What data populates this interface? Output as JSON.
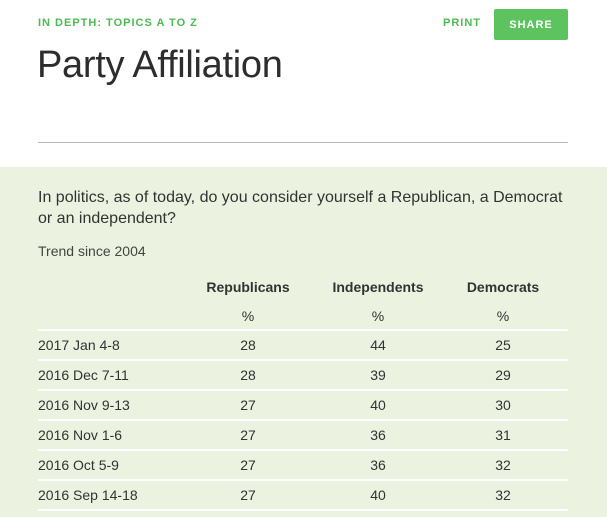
{
  "header": {
    "kicker": "IN DEPTH: TOPICS A TO Z",
    "print_label": "PRINT",
    "share_label": "SHARE",
    "title": "Party Affiliation"
  },
  "content": {
    "question": "In politics, as of today, do you consider yourself a Republican, a Democrat or an independent?",
    "trend": "Trend since 2004"
  },
  "table": {
    "columns": [
      "",
      "Republicans",
      "Independents",
      "Democrats"
    ],
    "units": [
      "",
      "%",
      "%",
      "%"
    ],
    "rows": [
      [
        "2017 Jan 4-8",
        "28",
        "44",
        "25"
      ],
      [
        "2016 Dec 7-11",
        "28",
        "39",
        "29"
      ],
      [
        "2016 Nov 9-13",
        "27",
        "40",
        "30"
      ],
      [
        "2016 Nov 1-6",
        "27",
        "36",
        "31"
      ],
      [
        "2016 Oct 5-9",
        "27",
        "36",
        "32"
      ],
      [
        "2016 Sep 14-18",
        "27",
        "40",
        "32"
      ]
    ]
  },
  "colors": {
    "accent": "#4cba52",
    "button": "#5cc35e",
    "panel_bg": "#ebf2e0"
  }
}
